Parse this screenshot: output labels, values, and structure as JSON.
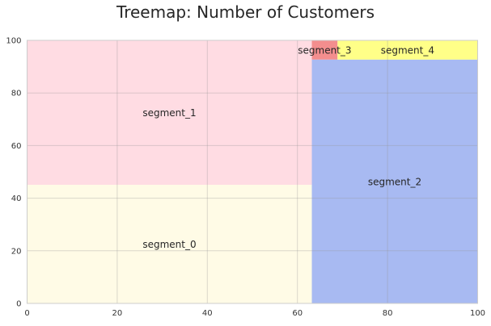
{
  "chart_data": {
    "type": "treemap",
    "title": "Treemap: Number of Customers",
    "xlim": [
      0,
      100
    ],
    "ylim": [
      0,
      100
    ],
    "grid": true,
    "x_ticks": [
      "0",
      "20",
      "40",
      "60",
      "80",
      "100"
    ],
    "y_ticks": [
      "0",
      "20",
      "40",
      "60",
      "80",
      "100"
    ],
    "segments": [
      {
        "label": "segment_0",
        "x0": 0,
        "y0": 0,
        "x1": 63.2,
        "y1": 45.1,
        "color": "#fffbe6"
      },
      {
        "label": "segment_1",
        "x0": 0,
        "y0": 45.1,
        "x1": 63.2,
        "y1": 100,
        "color": "#ffdce3"
      },
      {
        "label": "segment_2",
        "x0": 63.2,
        "y0": 0,
        "x1": 100,
        "y1": 92.7,
        "color": "#a8baf2"
      },
      {
        "label": "segment_3",
        "x0": 63.2,
        "y0": 92.7,
        "x1": 68.9,
        "y1": 100,
        "color": "#f38e8e"
      },
      {
        "label": "segment_4",
        "x0": 68.9,
        "y0": 92.7,
        "x1": 100,
        "y1": 100,
        "color": "#ffff88"
      }
    ]
  }
}
